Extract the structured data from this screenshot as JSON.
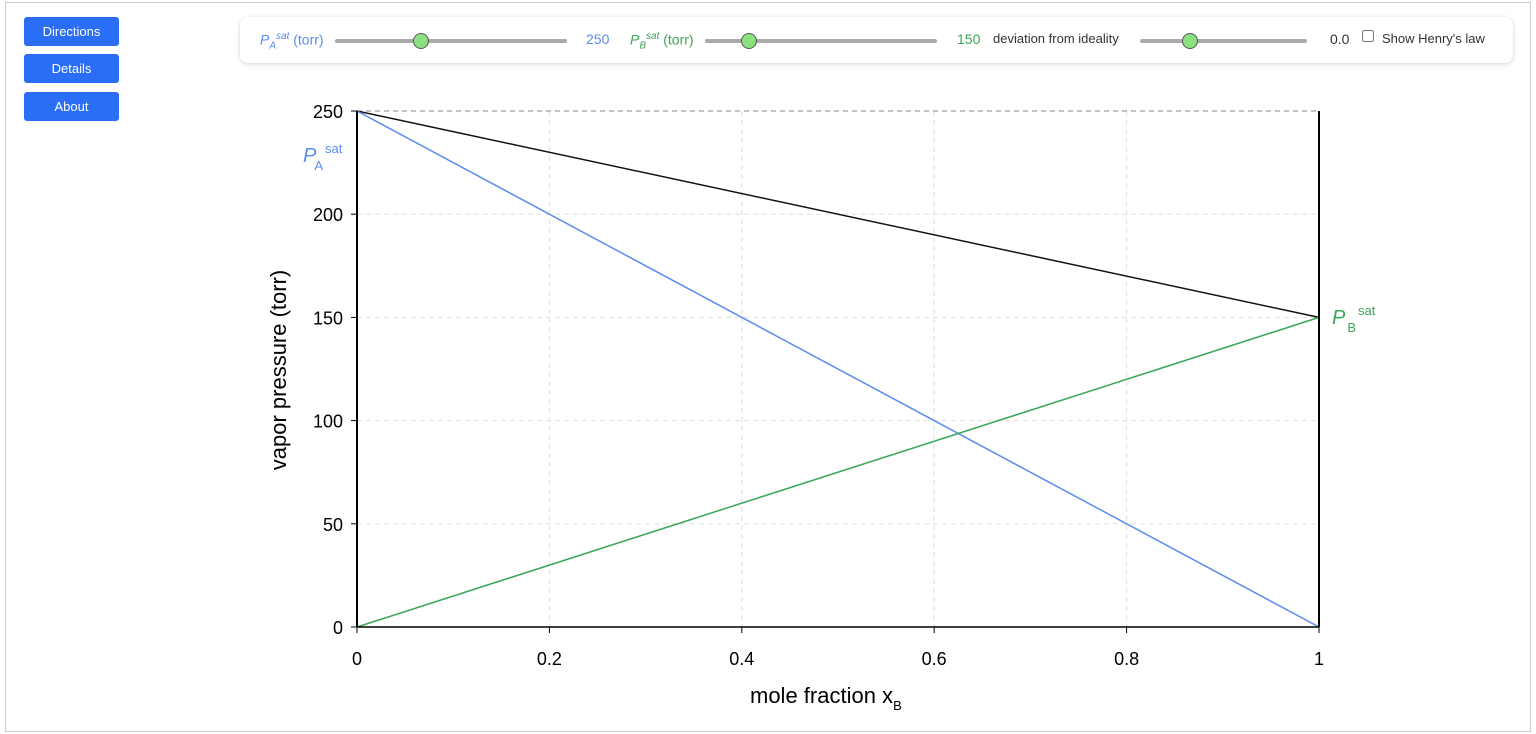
{
  "sidebar": {
    "buttons": [
      "Directions",
      "Details",
      "About"
    ]
  },
  "controls": {
    "pa": {
      "label_main": "P",
      "label_sub": "A",
      "label_sup": "sat",
      "label_unit": "(torr)",
      "value": "250",
      "slider_fraction": 0.37,
      "color": "#5b8def"
    },
    "pb": {
      "label_main": "P",
      "label_sub": "B",
      "label_sup": "sat",
      "label_unit": "(torr)",
      "value": "150",
      "slider_fraction": 0.19,
      "color": "#3aa657"
    },
    "dev": {
      "label": "deviation from ideality",
      "value": "0.0",
      "slider_fraction": 0.3
    },
    "henry": {
      "label": "Show Henry's law",
      "checked": false
    }
  },
  "chart_data": {
    "type": "line",
    "xlabel": "mole fraction x",
    "xlabel_sub": "B",
    "ylabel": "vapor pressure (torr)",
    "xlim": [
      0,
      1
    ],
    "ylim": [
      0,
      250
    ],
    "xticks": [
      "0",
      "0.2",
      "0.4",
      "0.6",
      "0.8",
      "1"
    ],
    "yticks": [
      "0",
      "50",
      "100",
      "150",
      "200",
      "250"
    ],
    "grid": true,
    "series": [
      {
        "color": "#111111",
        "x": [
          0,
          1
        ],
        "y": [
          250,
          150
        ]
      },
      {
        "color": "#5b8def",
        "x": [
          0,
          1
        ],
        "y": [
          250,
          0
        ]
      },
      {
        "color": "#3aa657",
        "x": [
          0,
          1
        ],
        "y": [
          0,
          150
        ]
      }
    ],
    "annotations": [
      {
        "text": "P",
        "sub": "A",
        "sup": "sat",
        "color": "#5b8def"
      },
      {
        "text": "P",
        "sub": "B",
        "sup": "sat",
        "color": "#3aa657"
      }
    ]
  }
}
